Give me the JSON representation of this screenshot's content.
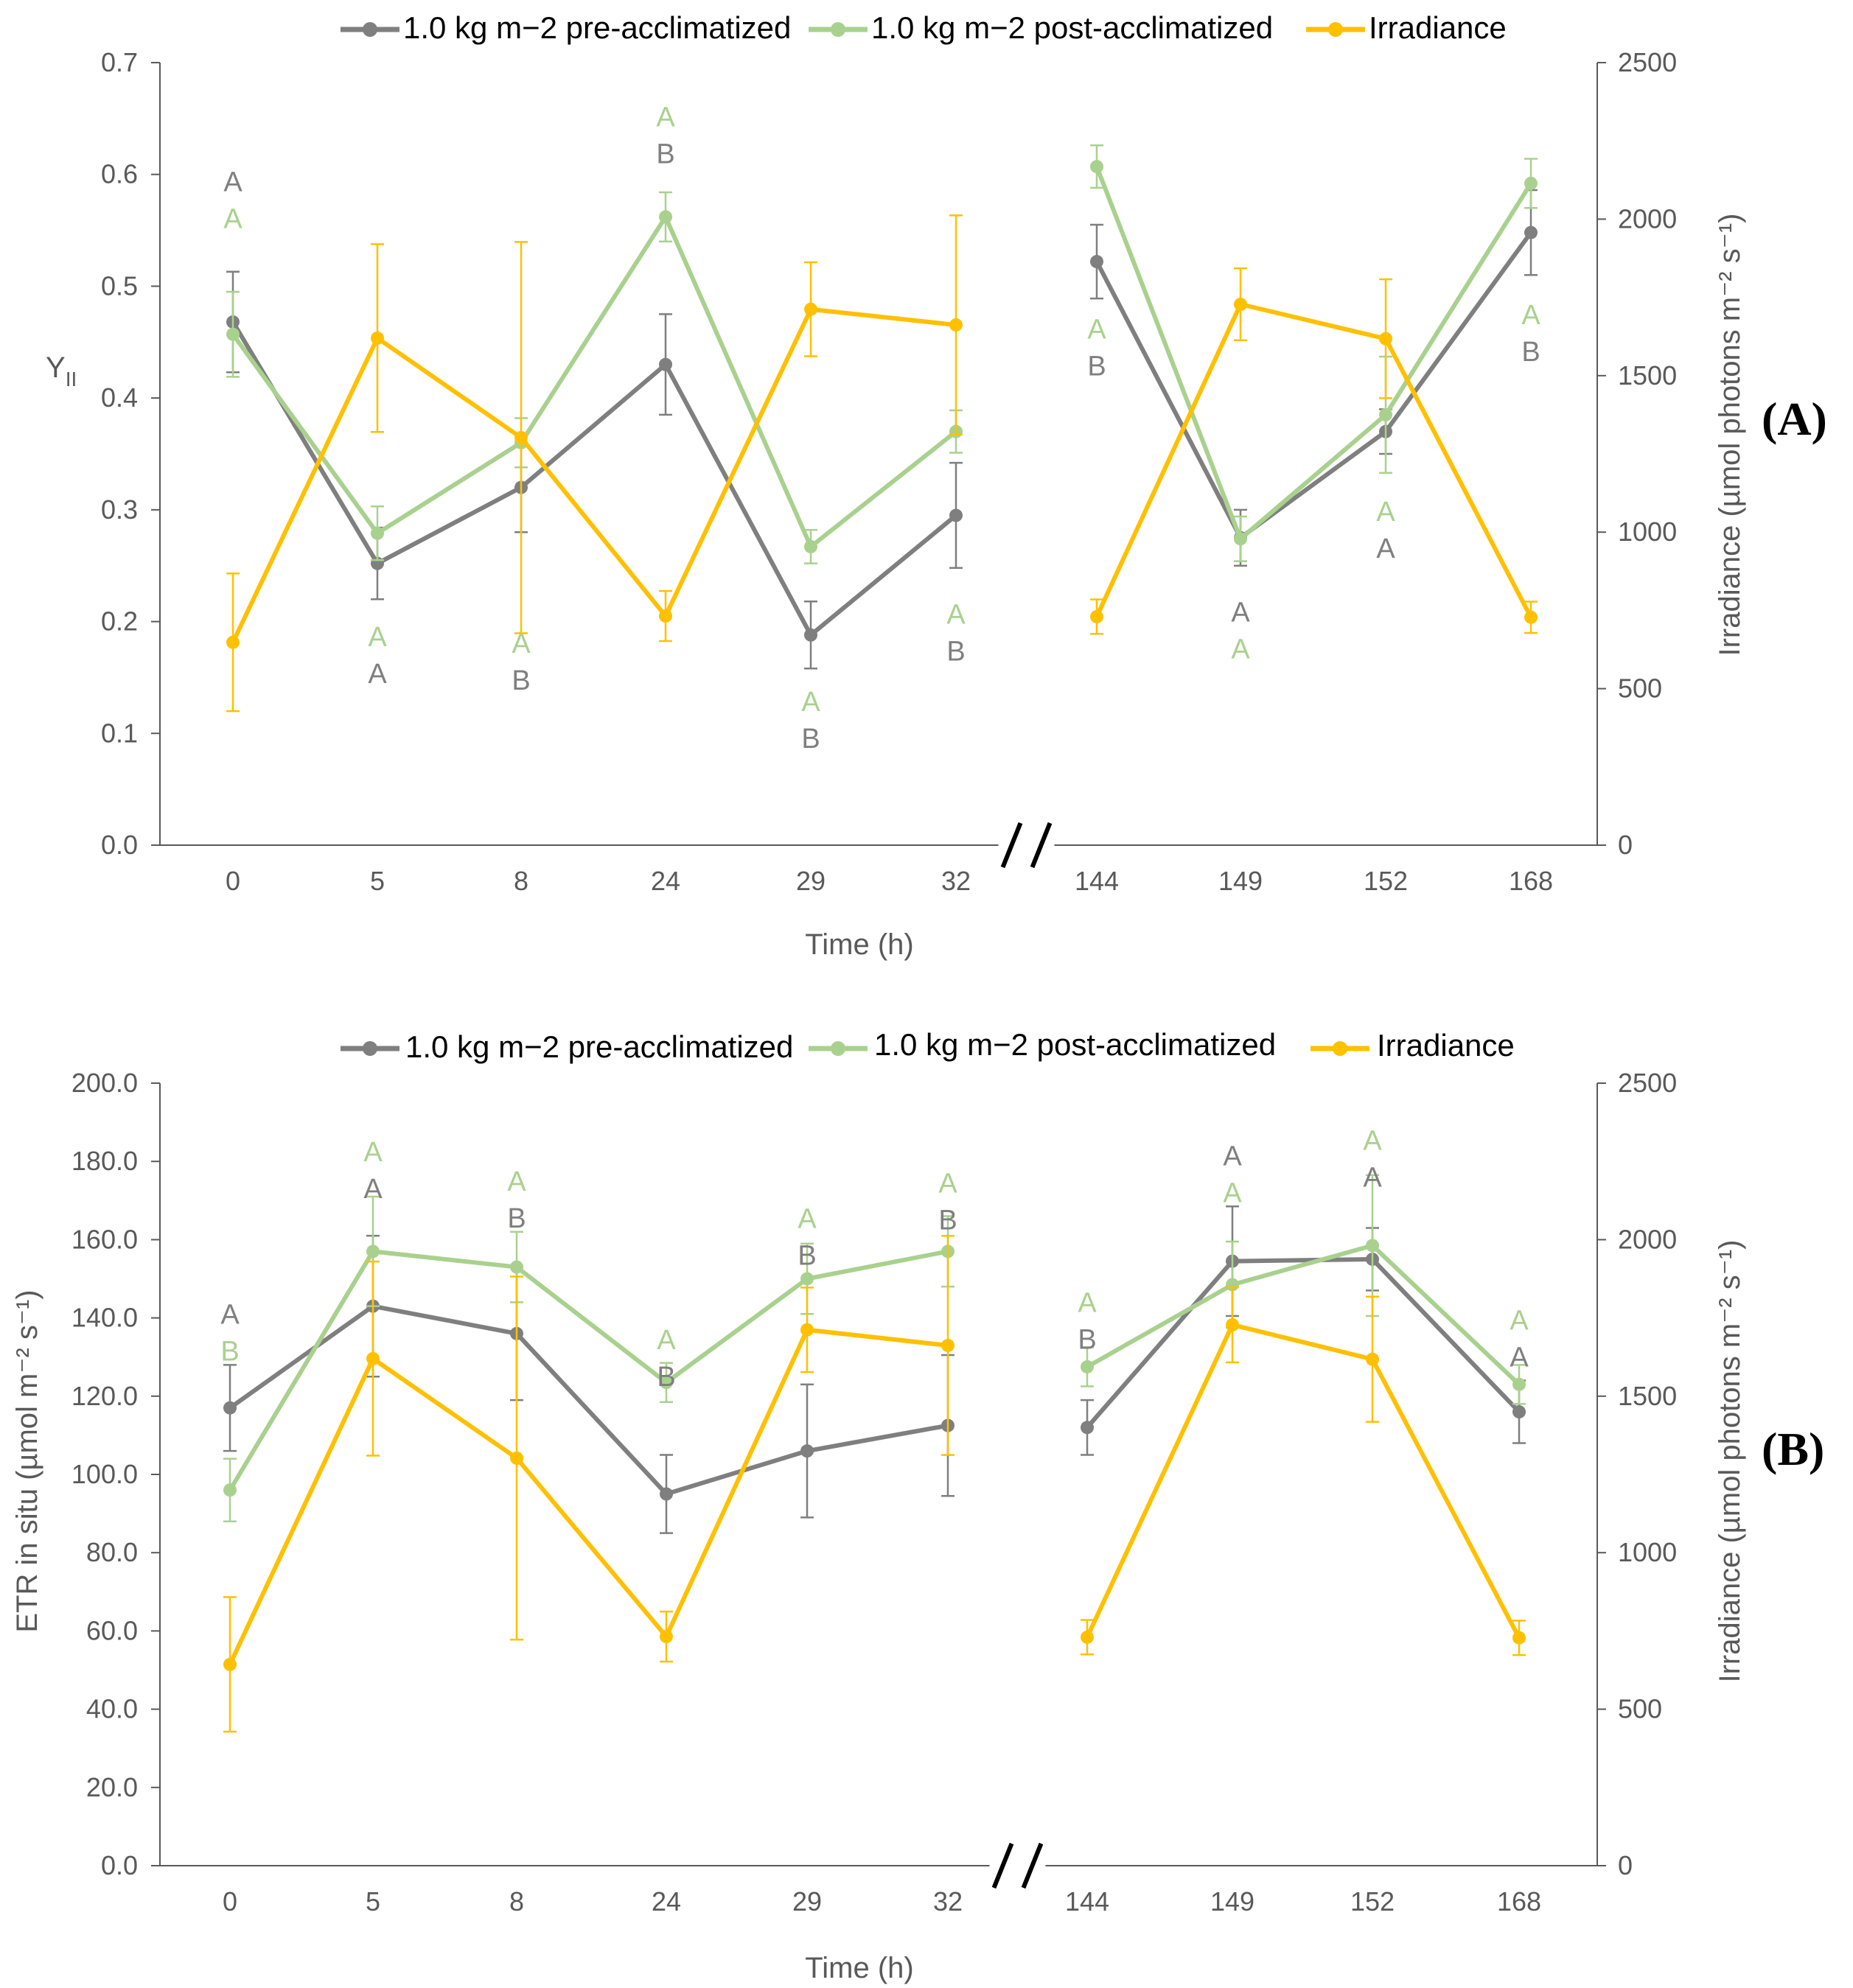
{
  "colors": {
    "pre": "#7f7f7f",
    "post": "#a9d18e",
    "irr": "#ffc000",
    "axis": "#595959"
  },
  "chart_data": [
    {
      "type": "line",
      "panel_label": "(A)",
      "categories": [
        "0",
        "5",
        "8",
        "24",
        "29",
        "32",
        "144",
        "149",
        "152",
        "168"
      ],
      "xlabel": "Time (h)",
      "ylabel_main": "Y",
      "ylabel_sub": "II",
      "ylabel_right": "Irradiance (µmol photons m⁻² s⁻¹)",
      "ylim": [
        0,
        0.7
      ],
      "yticks": [
        "0.0",
        "0.1",
        "0.2",
        "0.3",
        "0.4",
        "0.5",
        "0.6",
        "0.7"
      ],
      "ylim_right": [
        0,
        2500
      ],
      "yticks_right": [
        "0",
        "500",
        "1000",
        "1500",
        "2000",
        "2500"
      ],
      "axis_break_after": 5,
      "legend": [
        "1.0 kg m−2 pre-acclimatized",
        "1.0 kg m−2 post-acclimatized",
        "Irradiance"
      ],
      "series": [
        {
          "name": "1.0 kg m−2 pre-acclimatized",
          "axis": "left",
          "color_key": "pre",
          "values": [
            0.468,
            0.252,
            0.32,
            0.43,
            0.188,
            0.295,
            0.522,
            0.275,
            0.37,
            0.548
          ],
          "errors": [
            0.045,
            0.032,
            0.04,
            0.045,
            0.03,
            0.047,
            0.033,
            0.025,
            0.02,
            0.038
          ],
          "segment_gaps": [
            6
          ]
        },
        {
          "name": "1.0 kg m−2 post-acclimatized",
          "axis": "left",
          "color_key": "post",
          "values": [
            0.457,
            0.279,
            0.36,
            0.562,
            0.267,
            0.37,
            0.607,
            0.274,
            0.385,
            0.592
          ],
          "errors": [
            0.038,
            0.024,
            0.022,
            0.022,
            0.015,
            0.019,
            0.019,
            0.02,
            0.052,
            0.022
          ],
          "segment_gaps": []
        },
        {
          "name": "Irradiance",
          "axis": "right",
          "color_key": "irr",
          "values": [
            648,
            1620,
            1302,
            732,
            1712,
            1662,
            730,
            1728,
            1618,
            728
          ],
          "errors": [
            220,
            300,
            625,
            80,
            150,
            350,
            55,
            115,
            190,
            50
          ],
          "segment_gaps": []
        }
      ],
      "annotations": [
        {
          "category": "0",
          "y": 0.585,
          "top": "A",
          "bottom": "A",
          "top_color": "pre",
          "bottom_color": "post"
        },
        {
          "category": "5",
          "y": 0.178,
          "top": "A",
          "bottom": "A",
          "top_color": "post",
          "bottom_color": "pre"
        },
        {
          "category": "8",
          "y": 0.172,
          "top": "A",
          "bottom": "B",
          "top_color": "post",
          "bottom_color": "pre"
        },
        {
          "category": "24",
          "y": 0.643,
          "top": "A",
          "bottom": "B",
          "top_color": "post",
          "bottom_color": "pre"
        },
        {
          "category": "29",
          "y": 0.12,
          "top": "A",
          "bottom": "B",
          "top_color": "post",
          "bottom_color": "pre"
        },
        {
          "category": "32",
          "y": 0.198,
          "top": "A",
          "bottom": "B",
          "top_color": "post",
          "bottom_color": "pre"
        },
        {
          "category": "144",
          "y": 0.453,
          "top": "A",
          "bottom": "B",
          "top_color": "post",
          "bottom_color": "pre"
        },
        {
          "category": "149",
          "y": 0.2,
          "top": "A",
          "bottom": "A",
          "top_color": "pre",
          "bottom_color": "post"
        },
        {
          "category": "152",
          "y": 0.29,
          "top": "A",
          "bottom": "A",
          "top_color": "post",
          "bottom_color": "pre"
        },
        {
          "category": "168",
          "y": 0.466,
          "top": "A",
          "bottom": "B",
          "top_color": "post",
          "bottom_color": "pre"
        }
      ]
    },
    {
      "type": "line",
      "panel_label": "(B)",
      "categories": [
        "0",
        "5",
        "8",
        "24",
        "29",
        "32",
        "144",
        "149",
        "152",
        "168"
      ],
      "xlabel": "Time (h)",
      "ylabel_main": "ETR in situ (µmol m⁻² s⁻¹)",
      "ylabel_sub": "",
      "ylabel_right": "Irradiance (µmol photons m⁻² s⁻¹)",
      "ylim": [
        0,
        200
      ],
      "yticks": [
        "0.0",
        "20.0",
        "40.0",
        "60.0",
        "80.0",
        "100.0",
        "120.0",
        "140.0",
        "160.0",
        "180.0",
        "200.0"
      ],
      "ylim_right": [
        0,
        2500
      ],
      "yticks_right": [
        "0",
        "500",
        "1000",
        "1500",
        "2000",
        "2500"
      ],
      "axis_break_after": 5,
      "legend": [
        "1.0 kg m−2 pre-acclimatized",
        "1.0 kg m−2 post-acclimatized",
        "Irradiance"
      ],
      "series": [
        {
          "name": "1.0 kg m−2 pre-acclimatized",
          "axis": "left",
          "color_key": "pre",
          "values": [
            117,
            143,
            136,
            95,
            106,
            112.5,
            112,
            154.5,
            155,
            116
          ],
          "errors": [
            11,
            18,
            17,
            10,
            17,
            18,
            7,
            14,
            8,
            8
          ],
          "segment_gaps": []
        },
        {
          "name": "1.0 kg m−2 post-acclimatized",
          "axis": "left",
          "color_key": "post",
          "values": [
            96,
            157,
            153,
            123.5,
            150,
            157,
            127.5,
            148.5,
            158.5,
            123
          ],
          "errors": [
            8,
            14,
            9,
            5,
            9,
            9,
            5,
            11,
            18,
            5
          ],
          "segment_gaps": [
            4
          ]
        },
        {
          "name": "Irradiance",
          "axis": "right",
          "color_key": "irr",
          "values": [
            643,
            1620,
            1302,
            732,
            1712,
            1662,
            730,
            1728,
            1618,
            728
          ],
          "errors": [
            215,
            310,
            580,
            80,
            135,
            350,
            55,
            120,
            200,
            55
          ],
          "segment_gaps": [
            6
          ]
        }
      ],
      "annotations": [
        {
          "category": "0",
          "y": 138.5,
          "top": "A",
          "bottom": "B",
          "top_color": "pre",
          "bottom_color": "post"
        },
        {
          "category": "5",
          "y": 180,
          "top": "A",
          "bottom": "A",
          "top_color": "post",
          "bottom_color": "pre"
        },
        {
          "category": "8",
          "y": 172.5,
          "top": "A",
          "bottom": "B",
          "top_color": "post",
          "bottom_color": "pre"
        },
        {
          "category": "24",
          "y": 132,
          "top": "A",
          "bottom": "B",
          "top_color": "post",
          "bottom_color": "pre"
        },
        {
          "category": "29",
          "y": 163,
          "top": "A",
          "bottom": "B",
          "top_color": "post",
          "bottom_color": "pre"
        },
        {
          "category": "32",
          "y": 172,
          "top": "A",
          "bottom": "B",
          "top_color": "post",
          "bottom_color": "pre"
        },
        {
          "category": "144",
          "y": 141.5,
          "top": "A",
          "bottom": "B",
          "top_color": "post",
          "bottom_color": "pre"
        },
        {
          "category": "149",
          "y": 179,
          "top": "A",
          "bottom": "A",
          "top_color": "pre",
          "bottom_color": "post"
        },
        {
          "category": "152",
          "y": 183,
          "top": "A",
          "bottom": "A",
          "top_color": "post",
          "bottom_color": "pre"
        },
        {
          "category": "168",
          "y": 137,
          "top": "A",
          "bottom": "A",
          "top_color": "post",
          "bottom_color": "pre"
        }
      ]
    }
  ]
}
